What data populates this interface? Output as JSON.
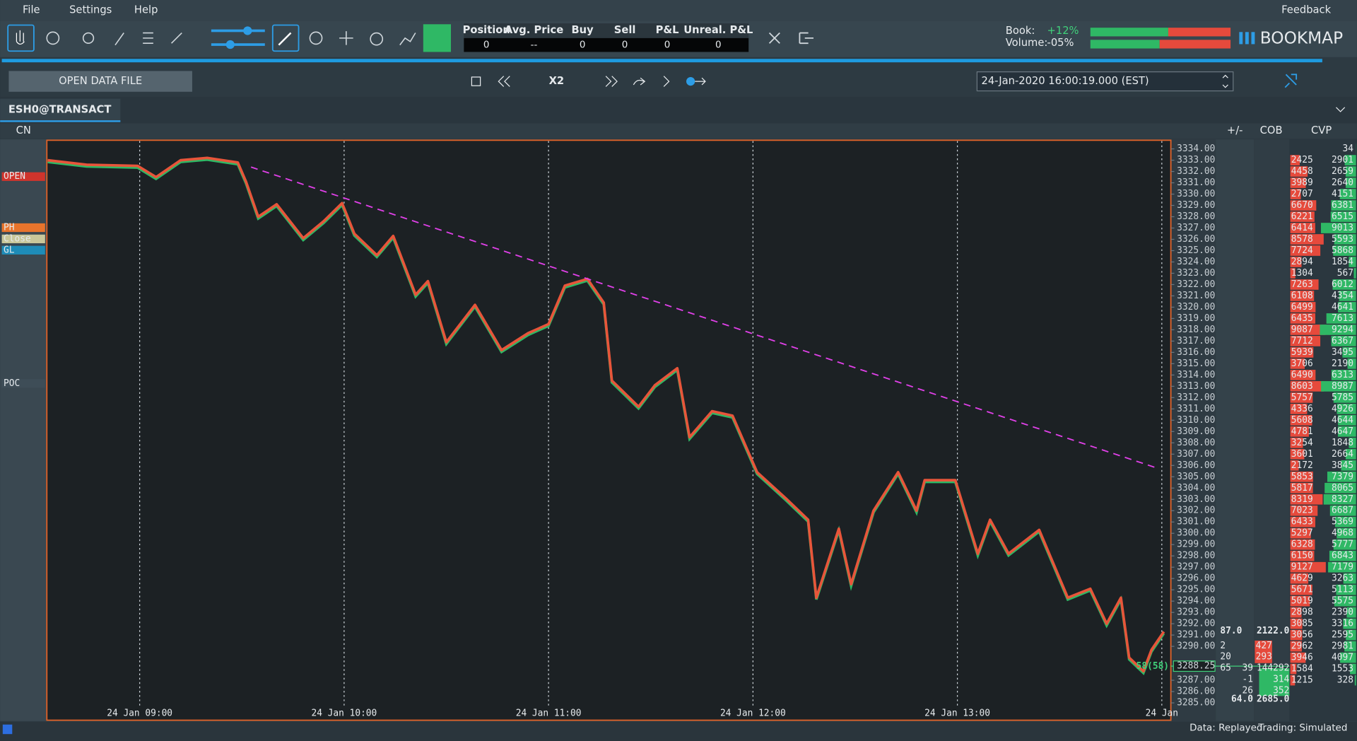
{
  "menu": {
    "file": "File",
    "settings": "Settings",
    "help": "Help",
    "feedback": "Feedback"
  },
  "toolbar": {
    "position_panel": {
      "headers": [
        "Position",
        "Avg. Price",
        "Buy",
        "Sell",
        "P&L",
        "Unreal. P&L"
      ],
      "values": [
        "0",
        "--",
        "0",
        "0",
        "0",
        "0"
      ]
    },
    "book_label": "Book:",
    "book_value": "+12%",
    "volume_label": "Volume:",
    "volume_value": "-05%",
    "brand": "BOOKMAP"
  },
  "controls": {
    "open_button": "OPEN DATA FILE",
    "speed": "X2",
    "datetime": "24-Jan-2020 16:00:19.000 (EST)"
  },
  "tab": "ESH0@TRANSACT",
  "columns": {
    "cn": "CN",
    "plus_minus": "+/-",
    "cob": "COB",
    "cvp": "CVP"
  },
  "indicators": [
    "OPEN",
    "PH",
    "Close",
    "GL",
    "POC"
  ],
  "chart_data": {
    "type": "line",
    "series": [
      {
        "color": "#e8553a",
        "x": [
          8.55,
          8.74,
          8.99,
          9.08,
          9.2,
          9.33,
          9.48,
          9.52,
          9.58,
          9.67,
          9.8,
          9.9,
          9.99,
          10.05,
          10.16,
          10.24,
          10.35,
          10.41,
          10.5,
          10.64,
          10.77,
          10.9,
          11.0,
          11.08,
          11.19,
          11.27,
          11.31,
          11.44,
          11.52,
          11.63,
          11.69,
          11.8,
          11.9,
          12.02,
          12.16,
          12.27,
          12.31,
          12.42,
          12.48,
          12.59,
          12.71,
          12.8,
          12.84,
          12.99,
          13.1,
          13.16,
          13.25,
          13.4,
          13.54,
          13.65,
          13.73,
          13.8,
          13.84,
          13.91,
          13.95,
          14.01
        ],
        "values": [
          3333.0,
          3332.6,
          3332.5,
          3331.5,
          3333.0,
          3333.2,
          3332.8,
          3331.1,
          3328.0,
          3329.1,
          3326.1,
          3327.6,
          3329.2,
          3326.5,
          3324.6,
          3326.3,
          3321.1,
          3322.3,
          3316.9,
          3320.2,
          3316.2,
          3317.7,
          3318.5,
          3321.9,
          3322.5,
          3320.4,
          3313.5,
          3311.2,
          3313.1,
          3314.6,
          3308.5,
          3310.8,
          3310.4,
          3305.4,
          3303.1,
          3301.2,
          3294.3,
          3300.4,
          3295.5,
          3302.0,
          3305.4,
          3302.0,
          3304.7,
          3304.7,
          3298.2,
          3301.2,
          3298.2,
          3300.3,
          3294.3,
          3295.1,
          3292.0,
          3294.3,
          3289.0,
          3287.8,
          3289.7,
          3291.3
        ]
      }
    ],
    "xlim": [
      8.55,
      14.04
    ],
    "xticks": [
      {
        "value": 9,
        "label": "24 Jan 09:00"
      },
      {
        "value": 10,
        "label": "24 Jan 10:00"
      },
      {
        "value": 11,
        "label": "24 Jan 11:00"
      },
      {
        "value": 12,
        "label": "24 Jan 12:00"
      },
      {
        "value": 13,
        "label": "24 Jan 13:00"
      },
      {
        "value": 14,
        "label": "24 Jan"
      }
    ],
    "ylim": [
      3284.5,
      3334.75
    ],
    "yticks": [
      {
        "value": 3334,
        "label": "3334.00"
      },
      {
        "value": 3333,
        "label": "3333.00"
      },
      {
        "value": 3332,
        "label": "3332.00"
      },
      {
        "value": 3331,
        "label": "3331.00"
      },
      {
        "value": 3330,
        "label": "3330.00"
      },
      {
        "value": 3329,
        "label": "3329.00"
      },
      {
        "value": 3328,
        "label": "3328.00"
      },
      {
        "value": 3327,
        "label": "3327.00"
      },
      {
        "value": 3326,
        "label": "3326.00"
      },
      {
        "value": 3325,
        "label": "3325.00"
      },
      {
        "value": 3324,
        "label": "3324.00"
      },
      {
        "value": 3323,
        "label": "3323.00"
      },
      {
        "value": 3322,
        "label": "3322.00"
      },
      {
        "value": 3321,
        "label": "3321.00"
      },
      {
        "value": 3320,
        "label": "3320.00"
      },
      {
        "value": 3319,
        "label": "3319.00"
      },
      {
        "value": 3318,
        "label": "3318.00"
      },
      {
        "value": 3317,
        "label": "3317.00"
      },
      {
        "value": 3316,
        "label": "3316.00"
      },
      {
        "value": 3315,
        "label": "3315.00"
      },
      {
        "value": 3314,
        "label": "3314.00"
      },
      {
        "value": 3313,
        "label": "3313.00"
      },
      {
        "value": 3312,
        "label": "3312.00"
      },
      {
        "value": 3311,
        "label": "3311.00"
      },
      {
        "value": 3310,
        "label": "3310.00"
      },
      {
        "value": 3309,
        "label": "3309.00"
      },
      {
        "value": 3308,
        "label": "3308.00"
      },
      {
        "value": 3307,
        "label": "3307.00"
      },
      {
        "value": 3306,
        "label": "3306.00"
      },
      {
        "value": 3305,
        "label": "3305.00"
      },
      {
        "value": 3304,
        "label": "3304.00"
      },
      {
        "value": 3303,
        "label": "3303.00"
      },
      {
        "value": 3302,
        "label": "3302.00"
      },
      {
        "value": 3301,
        "label": "3301.00"
      },
      {
        "value": 3300,
        "label": "3300.00"
      },
      {
        "value": 3299,
        "label": "3299.00"
      },
      {
        "value": 3298,
        "label": "3298.00"
      },
      {
        "value": 3297,
        "label": "3297.00"
      },
      {
        "value": 3296,
        "label": "3296.00"
      },
      {
        "value": 3295,
        "label": "3295.00"
      },
      {
        "value": 3294,
        "label": "3294.00"
      },
      {
        "value": 3293,
        "label": "3293.00"
      },
      {
        "value": 3292,
        "label": "3292.00"
      },
      {
        "value": 3291,
        "label": "3291.00"
      },
      {
        "value": 3290,
        "label": "3290.00"
      },
      {
        "value": 3287,
        "label": "3287.00"
      },
      {
        "value": 3286,
        "label": "3286.00"
      },
      {
        "value": 3285,
        "label": "3285.00"
      }
    ],
    "last_price": {
      "value": 3288.25,
      "label": "3288.25"
    },
    "grid": true
  },
  "cob": {
    "top_left": "87.0",
    "top_right": "2122.0",
    "rows": [
      [
        "2",
        "427"
      ],
      [
        "20",
        "293"
      ],
      [
        "65",
        "39",
        "144292"
      ],
      [
        "-1",
        "314"
      ],
      [
        "26",
        "352"
      ]
    ],
    "bottom_left": "64.0",
    "bottom_right": "2685.0",
    "trade": "58(58)"
  },
  "cvp": {
    "prices": [
      3334,
      3333,
      3332,
      3331,
      3330,
      3329,
      3328,
      3327,
      3326,
      3325,
      3324,
      3323,
      3322,
      3321,
      3320,
      3319,
      3318,
      3317,
      3316,
      3315,
      3314,
      3313,
      3312,
      3311,
      3310,
      3309,
      3308,
      3307,
      3306,
      3305,
      3304,
      3303,
      3302,
      3301,
      3300,
      3299,
      3298,
      3297,
      3296,
      3295,
      3294,
      3293,
      3292,
      3291,
      3290,
      3289,
      3288,
      3287
    ],
    "bid": [
      null,
      2425,
      4458,
      3989,
      2707,
      6670,
      6221,
      6414,
      8578,
      7724,
      2894,
      1304,
      7263,
      6108,
      6499,
      6435,
      9087,
      7712,
      5939,
      3706,
      6490,
      8603,
      5757,
      4336,
      5608,
      4781,
      3254,
      3601,
      2172,
      5853,
      5817,
      8319,
      7023,
      6433,
      5297,
      6328,
      6150,
      9127,
      4629,
      5671,
      5019,
      2898,
      3085,
      3056,
      2962,
      3946,
      1584,
      1215
    ],
    "ask": [
      34,
      2901,
      2659,
      2640,
      4151,
      6381,
      6515,
      9013,
      5593,
      5868,
      1854,
      567,
      6012,
      4354,
      4641,
      7613,
      9294,
      6367,
      3495,
      2190,
      6313,
      8987,
      5785,
      4926,
      4644,
      4647,
      1848,
      2664,
      3845,
      7379,
      8065,
      8327,
      6687,
      5369,
      4968,
      5777,
      6843,
      7179,
      3263,
      5113,
      5575,
      2390,
      3316,
      2595,
      2981,
      4097,
      1553,
      328
    ]
  },
  "status": {
    "data": "Data: Replayed",
    "trading": "Trading: Simulated"
  }
}
